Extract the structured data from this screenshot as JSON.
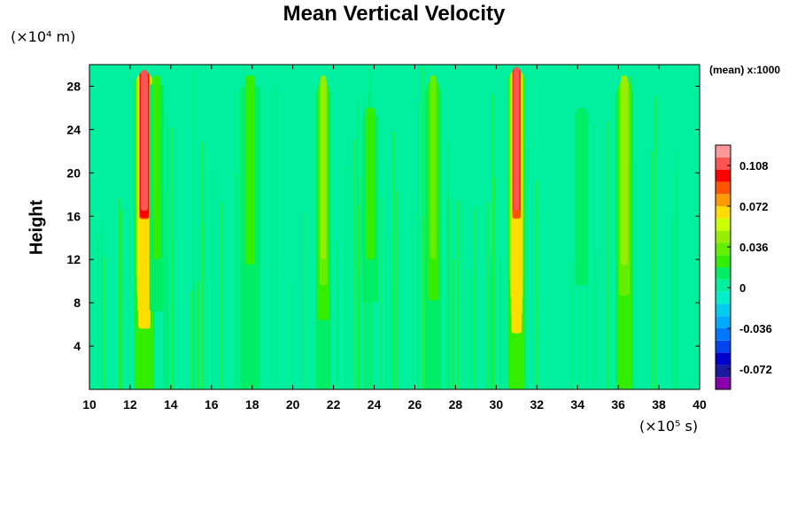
{
  "chart_data": {
    "type": "heatmap",
    "title": "Mean Vertical Velocity",
    "ylabel": "Height",
    "y_unit_label": "(×10⁴ m)",
    "x_unit_label": "(×10⁵ s)",
    "colorbar_title": "(mean) x:1000",
    "xlim": [
      10,
      40
    ],
    "ylim": [
      0,
      30
    ],
    "x_ticks": [
      10,
      12,
      14,
      16,
      18,
      20,
      22,
      24,
      26,
      28,
      30,
      32,
      34,
      36,
      38,
      40
    ],
    "y_ticks": [
      4,
      8,
      12,
      16,
      20,
      24,
      28
    ],
    "background_value": 0.006,
    "colorbar": {
      "range": [
        -0.09,
        0.126
      ],
      "labels": [
        "0.108",
        "0.072",
        "0.036",
        "0",
        "-0.036",
        "-0.072"
      ],
      "label_values": [
        0.108,
        0.072,
        0.036,
        0,
        -0.036,
        -0.072
      ],
      "colors": [
        "#8800aa",
        "#1a1aa0",
        "#0000cc",
        "#0044ee",
        "#0077ff",
        "#00aaff",
        "#00ccee",
        "#00eecc",
        "#00f0a0",
        "#00ee66",
        "#33ee00",
        "#66ee00",
        "#99ee00",
        "#ccff00",
        "#ffdd00",
        "#ff9900",
        "#ff5500",
        "#ff0000",
        "#ff5555",
        "#ff9999"
      ]
    },
    "features": [
      {
        "x": 12.7,
        "peak": 0.115,
        "y_top": 29.5,
        "width": 0.35,
        "kind": "strong"
      },
      {
        "x": 21.5,
        "peak": 0.045,
        "y_top": 29.0,
        "width": 0.3,
        "kind": "moderate"
      },
      {
        "x": 26.9,
        "peak": 0.035,
        "y_top": 29.0,
        "width": 0.35,
        "kind": "moderate"
      },
      {
        "x": 31.0,
        "peak": 0.11,
        "y_top": 29.8,
        "width": 0.3,
        "kind": "strong"
      },
      {
        "x": 36.3,
        "peak": 0.05,
        "y_top": 29.0,
        "width": 0.35,
        "kind": "moderate"
      },
      {
        "x": 17.9,
        "peak": 0.025,
        "y_top": 29.0,
        "width": 0.5,
        "kind": "weak"
      },
      {
        "x": 13.3,
        "peak": 0.02,
        "y_top": 29.0,
        "width": 0.4,
        "kind": "weak"
      },
      {
        "x": 23.8,
        "peak": 0.018,
        "y_top": 26.0,
        "width": 0.5,
        "kind": "weak"
      },
      {
        "x": 34.2,
        "peak": 0.015,
        "y_top": 26.0,
        "width": 0.5,
        "kind": "weak"
      }
    ]
  }
}
